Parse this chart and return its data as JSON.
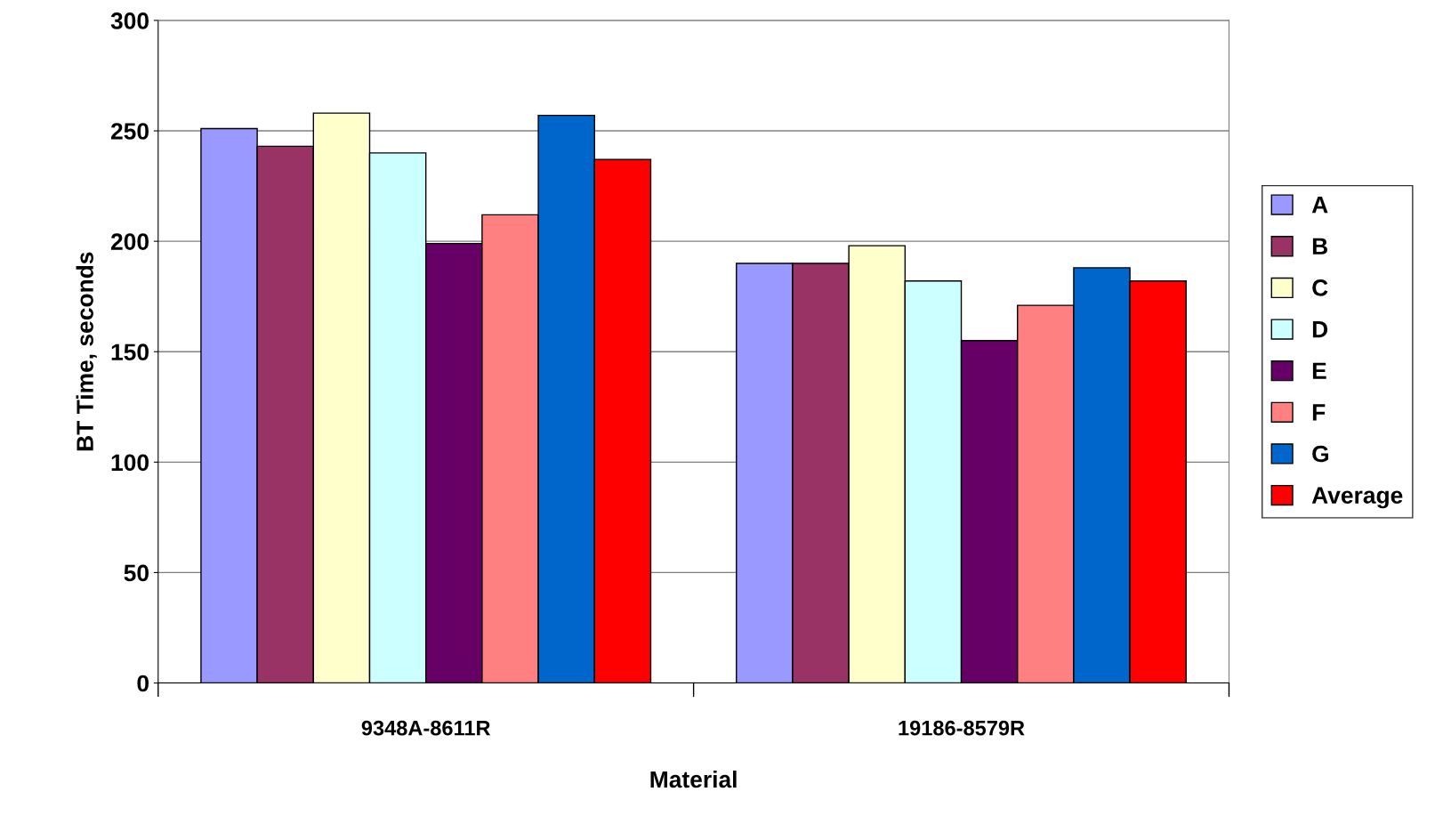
{
  "chart_data": {
    "type": "bar",
    "xlabel": "Material",
    "ylabel": "BT Time, seconds",
    "categories": [
      "9348A-8611R",
      "19186-8579R"
    ],
    "series": [
      {
        "name": "A",
        "color": "#9999ff",
        "values": [
          251,
          190
        ]
      },
      {
        "name": "B",
        "color": "#993366",
        "values": [
          243,
          190
        ]
      },
      {
        "name": "C",
        "color": "#ffffcc",
        "values": [
          258,
          198
        ]
      },
      {
        "name": "D",
        "color": "#ccffff",
        "values": [
          240,
          182
        ]
      },
      {
        "name": "E",
        "color": "#660066",
        "values": [
          199,
          155
        ]
      },
      {
        "name": "F",
        "color": "#ff8080",
        "values": [
          212,
          171
        ]
      },
      {
        "name": "G",
        "color": "#0066cc",
        "values": [
          257,
          188
        ]
      },
      {
        "name": "Average",
        "color": "#ff0000",
        "values": [
          237,
          182
        ]
      }
    ],
    "ylim": [
      0,
      300
    ],
    "yticks": [
      0,
      50,
      100,
      150,
      200,
      250,
      300
    ],
    "grid": "y",
    "legend": "right"
  }
}
